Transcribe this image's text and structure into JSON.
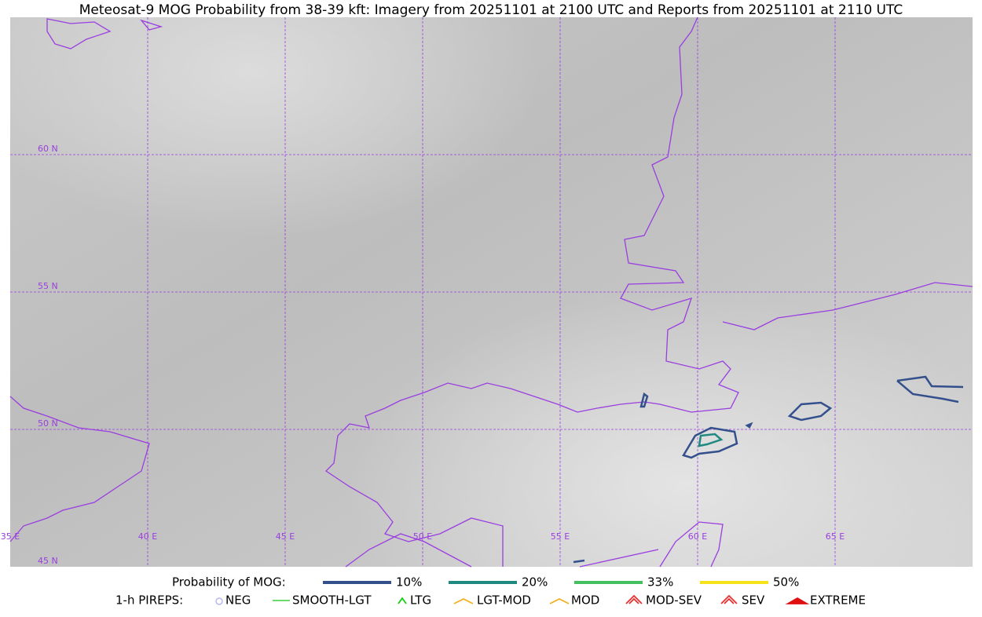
{
  "header": {
    "title": "Meteosat-9 MOG Probability from 38-39 kft: Imagery from 20251101 at 2100 UTC and Reports from 20251101 at 2110 UTC"
  },
  "map": {
    "lat_labels": [
      "60 N",
      "55 N",
      "50 N",
      "45 N"
    ],
    "lon_labels": [
      "35 E",
      "40 E",
      "45 E",
      "50 E",
      "55 E",
      "60 E",
      "65 E"
    ]
  },
  "legend": {
    "probability": {
      "label": "Probability of MOG:",
      "items": [
        {
          "label": "10%",
          "color": "#34508c"
        },
        {
          "label": "20%",
          "color": "#1f8a80"
        },
        {
          "label": "33%",
          "color": "#45c060"
        },
        {
          "label": "50%",
          "color": "#f5e21a"
        }
      ]
    },
    "pireps": {
      "label": "1-h PIREPS:",
      "items": [
        {
          "label": "NEG",
          "color": "#b8b8f0"
        },
        {
          "label": "SMOOTH-LGT",
          "color": "#3ad13a"
        },
        {
          "label": "LTG",
          "color": "#10d010"
        },
        {
          "label": "LGT-MOD",
          "color": "#f0b020"
        },
        {
          "label": "MOD",
          "color": "#f0b020"
        },
        {
          "label": "MOD-SEV",
          "color": "#e83030"
        },
        {
          "label": "SEV",
          "color": "#e83030"
        },
        {
          "label": "EXTREME",
          "color": "#e01010"
        }
      ]
    }
  }
}
